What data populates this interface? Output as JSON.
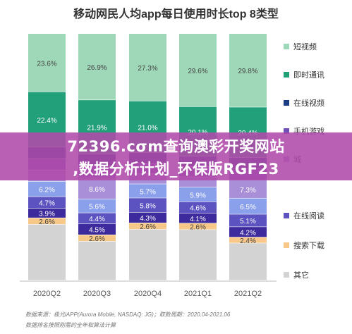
{
  "chart_data": {
    "type": "bar",
    "stacked": true,
    "normalized": true,
    "title": "移动网民人均app每日使用时长top 8类型",
    "categories": [
      "2020Q2",
      "2020Q3",
      "2020Q4",
      "2021Q1",
      "2021Q2"
    ],
    "series": [
      {
        "name": "短视频",
        "color": "#9fd8b8",
        "values": [
          23.6,
          26.9,
          27.3,
          29.6,
          29.8
        ]
      },
      {
        "name": "即时通讯",
        "color": "#22a07a",
        "values": [
          22.4,
          21.9,
          21.0,
          20.1,
          20.4
        ]
      },
      {
        "name": "在线视频",
        "color": "#1c3d86",
        "values": [
          null,
          null,
          null,
          null,
          null
        ]
      },
      {
        "name": "手机游戏",
        "color": "#6f50b8",
        "values": [
          null,
          null,
          null,
          null,
          null
        ]
      },
      {
        "name": "",
        "color": "#a88fd8",
        "values": [
          null,
          8.6,
          null,
          null,
          7.3
        ]
      },
      {
        "name": "",
        "color": "#8ba0ea",
        "values": [
          6.2,
          5.6,
          5.7,
          5.9,
          6.5
        ]
      },
      {
        "name": "在线阅读",
        "color": "#5c52c0",
        "values": [
          4.7,
          4.4,
          5.8,
          4.6,
          5.1
        ]
      },
      {
        "name": "",
        "color": "#3d2a9c",
        "values": [
          3.9,
          4.5,
          4.3,
          4.1,
          4.2
        ]
      },
      {
        "name": "搜索下载",
        "color": "#f7c888",
        "values": [
          2.6,
          2.6,
          2.6,
          2.6,
          2.4
        ]
      },
      {
        "name": "其它",
        "color": "#d3d3d3",
        "values": [
          null,
          null,
          null,
          null,
          null
        ]
      }
    ],
    "ylim": [
      0,
      100
    ],
    "legend_position": "right",
    "grid": false
  },
  "legend": [
    {
      "label": "短视频",
      "color": "#9fd8b8"
    },
    {
      "label": "即时通讯",
      "color": "#22a07a"
    },
    {
      "label": "在线视频",
      "color": "#1c3d86"
    },
    {
      "label": "手机游戏",
      "color": "#6f50b8"
    },
    {
      "label": "城",
      "color": "#a88fd8"
    },
    {
      "label": "在线阅读",
      "color": "#5c52c0"
    },
    {
      "label": "搜索下载",
      "color": "#f7c888"
    },
    {
      "label": "其它",
      "color": "#d3d3d3"
    }
  ],
  "footer": {
    "source": "数据来源：极光iAPP(Aurora Mobile, NASDAQ: JG)；取数周期：2020.04-2021.06",
    "note": "数据排名按照刚需的全年和算法计算"
  },
  "banner": {
    "line1": "72396.cσm查询澳彩开奖网站",
    "line2": ",数据分析计划_环保版RGF23"
  }
}
